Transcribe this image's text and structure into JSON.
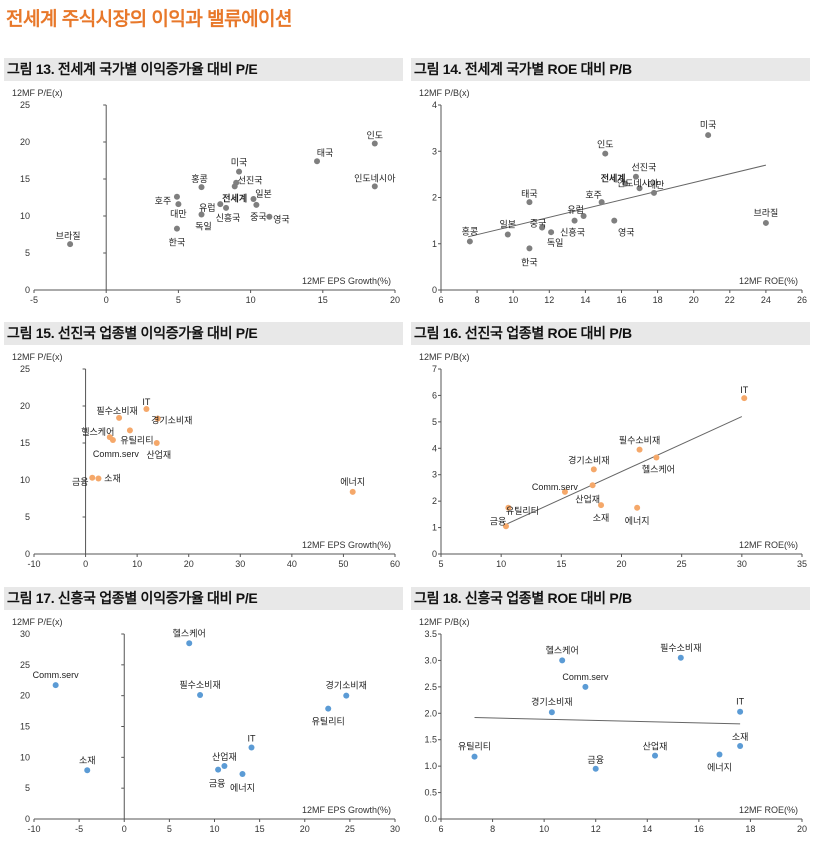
{
  "page_title": "전세계 주식시장의 이익과 밸류에이션",
  "chart_data": [
    {
      "id": "fig13",
      "type": "scatter",
      "title": "그림 13. 전세계 국가별 이익증가율 대비 P/E",
      "ylabel": "12MF P/E(x)",
      "xlabel": "12MF EPS Growth(%)",
      "xlim": [
        -5,
        20
      ],
      "ylim": [
        0,
        25
      ],
      "xticks": [
        -5,
        0,
        5,
        10,
        15,
        20
      ],
      "yticks": [
        0,
        5,
        10,
        15,
        20,
        25
      ],
      "zero_axis_x": 0,
      "color": "#7f7f7f",
      "points": [
        {
          "label": "인도",
          "x": 18.6,
          "y": 19.8
        },
        {
          "label": "태국",
          "x": 14.6,
          "y": 17.4
        },
        {
          "label": "인도네시아",
          "x": 18.6,
          "y": 14.0
        },
        {
          "label": "미국",
          "x": 9.2,
          "y": 16.0
        },
        {
          "label": "홍콩",
          "x": 6.6,
          "y": 13.9
        },
        {
          "label": "선진국",
          "x": 9.0,
          "y": 14.5
        },
        {
          "label": "전세계",
          "x": 8.9,
          "y": 14.0,
          "bold": true
        },
        {
          "label": "일본",
          "x": 10.2,
          "y": 12.3
        },
        {
          "label": "유럽",
          "x": 7.9,
          "y": 11.6
        },
        {
          "label": "중국",
          "x": 10.4,
          "y": 11.5
        },
        {
          "label": "신흥국",
          "x": 8.3,
          "y": 11.1
        },
        {
          "label": "영국",
          "x": 11.3,
          "y": 9.9
        },
        {
          "label": "호주",
          "x": 4.9,
          "y": 12.6
        },
        {
          "label": "대만",
          "x": 5.0,
          "y": 11.6
        },
        {
          "label": "독일",
          "x": 6.6,
          "y": 10.2
        },
        {
          "label": "한국",
          "x": 4.9,
          "y": 8.3
        },
        {
          "label": "브라질",
          "x": -2.5,
          "y": 6.2
        }
      ]
    },
    {
      "id": "fig14",
      "type": "scatter",
      "title": "그림 14. 전세계 국가별 ROE 대비 P/B",
      "ylabel": "12MF P/B(x)",
      "xlabel": "12MF ROE(%)",
      "xlim": [
        6,
        26
      ],
      "ylim": [
        0,
        4
      ],
      "xticks": [
        6,
        8,
        10,
        12,
        14,
        16,
        18,
        20,
        22,
        24,
        26
      ],
      "yticks": [
        0,
        1,
        2,
        3,
        4
      ],
      "color": "#7f7f7f",
      "trendline": {
        "x": [
          7.5,
          24.0
        ],
        "y": [
          1.15,
          2.7
        ]
      },
      "points": [
        {
          "label": "미국",
          "x": 20.8,
          "y": 3.35
        },
        {
          "label": "인도",
          "x": 15.1,
          "y": 2.95
        },
        {
          "label": "선진국",
          "x": 16.8,
          "y": 2.45
        },
        {
          "label": "전세계",
          "x": 16.2,
          "y": 2.3,
          "bold": true
        },
        {
          "label": "대만",
          "x": 17.8,
          "y": 2.1
        },
        {
          "label": "인도네시아",
          "x": 17.0,
          "y": 2.2
        },
        {
          "label": "태국",
          "x": 10.9,
          "y": 1.9
        },
        {
          "label": "호주",
          "x": 14.9,
          "y": 1.9
        },
        {
          "label": "유럽",
          "x": 13.9,
          "y": 1.6
        },
        {
          "label": "신흥국",
          "x": 13.4,
          "y": 1.5
        },
        {
          "label": "일본",
          "x": 9.7,
          "y": 1.2
        },
        {
          "label": "중국",
          "x": 11.6,
          "y": 1.35
        },
        {
          "label": "독일",
          "x": 12.1,
          "y": 1.25
        },
        {
          "label": "영국",
          "x": 15.6,
          "y": 1.5
        },
        {
          "label": "홍콩",
          "x": 7.6,
          "y": 1.05
        },
        {
          "label": "한국",
          "x": 10.9,
          "y": 0.9
        },
        {
          "label": "브라질",
          "x": 24.0,
          "y": 1.45
        }
      ]
    },
    {
      "id": "fig15",
      "type": "scatter",
      "title": "그림 15. 선진국 업종별 이익증가율 대비 P/E",
      "ylabel": "12MF P/E(x)",
      "xlabel": "12MF EPS Growth(%)",
      "xlim": [
        -10,
        60
      ],
      "ylim": [
        0,
        25
      ],
      "xticks": [
        -10,
        0,
        10,
        20,
        30,
        40,
        50,
        60
      ],
      "yticks": [
        0,
        5,
        10,
        15,
        20,
        25
      ],
      "zero_axis_x": 0,
      "color": "#f5a86a",
      "points": [
        {
          "label": "IT",
          "x": 11.8,
          "y": 19.6
        },
        {
          "label": "필수소비재",
          "x": 6.5,
          "y": 18.4
        },
        {
          "label": "경기소비재",
          "x": 14.0,
          "y": 18.3
        },
        {
          "label": "헬스케어",
          "x": 4.7,
          "y": 15.8
        },
        {
          "label": "유틸리티",
          "x": 8.6,
          "y": 16.7
        },
        {
          "label": "Comm.serv",
          "x": 5.3,
          "y": 15.4
        },
        {
          "label": "산업재",
          "x": 13.8,
          "y": 15.0
        },
        {
          "label": "금융",
          "x": 1.3,
          "y": 10.3
        },
        {
          "label": "소재",
          "x": 2.5,
          "y": 10.2
        },
        {
          "label": "에너지",
          "x": 51.8,
          "y": 8.4
        }
      ]
    },
    {
      "id": "fig16",
      "type": "scatter",
      "title": "그림 16. 선진국 업종별 ROE 대비 P/B",
      "ylabel": "12MF P/B(x)",
      "xlabel": "12MF ROE(%)",
      "xlim": [
        5,
        35
      ],
      "ylim": [
        0,
        7
      ],
      "xticks": [
        5,
        10,
        15,
        20,
        25,
        30,
        35
      ],
      "yticks": [
        0,
        1,
        2,
        3,
        4,
        5,
        6,
        7
      ],
      "color": "#f5a86a",
      "trendline": {
        "x": [
          10.3,
          30.0
        ],
        "y": [
          1.1,
          5.2
        ]
      },
      "points": [
        {
          "label": "IT",
          "x": 30.2,
          "y": 5.9
        },
        {
          "label": "필수소비재",
          "x": 21.5,
          "y": 3.95
        },
        {
          "label": "헬스케어",
          "x": 22.9,
          "y": 3.65
        },
        {
          "label": "경기소비재",
          "x": 17.7,
          "y": 3.2
        },
        {
          "label": "Comm.serv",
          "x": 15.3,
          "y": 2.35
        },
        {
          "label": "산업재",
          "x": 17.6,
          "y": 2.6
        },
        {
          "label": "유틸리티",
          "x": 10.6,
          "y": 1.75
        },
        {
          "label": "소재",
          "x": 18.3,
          "y": 1.85
        },
        {
          "label": "에너지",
          "x": 21.3,
          "y": 1.75
        },
        {
          "label": "금융",
          "x": 10.4,
          "y": 1.05
        }
      ]
    },
    {
      "id": "fig17",
      "type": "scatter",
      "title": "그림 17. 신흥국 업종별 이익증가율 대비 P/E",
      "ylabel": "12MF P/E(x)",
      "xlabel": "12MF EPS Growth(%)",
      "xlim": [
        -10,
        30
      ],
      "ylim": [
        0,
        30
      ],
      "xticks": [
        -10,
        -5,
        0,
        5,
        10,
        15,
        20,
        25,
        30
      ],
      "yticks": [
        0,
        5,
        10,
        15,
        20,
        25,
        30
      ],
      "zero_axis_x": 0,
      "color": "#5b9bd5",
      "points": [
        {
          "label": "헬스케어",
          "x": 7.2,
          "y": 28.5
        },
        {
          "label": "Comm.serv",
          "x": -7.6,
          "y": 21.7
        },
        {
          "label": "필수소비재",
          "x": 8.4,
          "y": 20.1
        },
        {
          "label": "경기소비재",
          "x": 24.6,
          "y": 20.0
        },
        {
          "label": "유틸리티",
          "x": 22.6,
          "y": 17.9
        },
        {
          "label": "IT",
          "x": 14.1,
          "y": 11.6
        },
        {
          "label": "소재",
          "x": -4.1,
          "y": 7.9
        },
        {
          "label": "산업재",
          "x": 11.1,
          "y": 8.6
        },
        {
          "label": "금융",
          "x": 10.4,
          "y": 8.0
        },
        {
          "label": "에너지",
          "x": 13.1,
          "y": 7.3
        }
      ]
    },
    {
      "id": "fig18",
      "type": "scatter",
      "title": "그림 18. 신흥국 업종별 ROE 대비 P/B",
      "ylabel": "12MF P/B(x)",
      "xlabel": "12MF ROE(%)",
      "xlim": [
        6,
        20
      ],
      "ylim": [
        0,
        3.5
      ],
      "xticks": [
        6,
        8,
        10,
        12,
        14,
        16,
        18,
        20
      ],
      "yticks": [
        0.0,
        0.5,
        1.0,
        1.5,
        2.0,
        2.5,
        3.0,
        3.5
      ],
      "ytick_decimals": 1,
      "color": "#5b9bd5",
      "trendline": {
        "x": [
          7.3,
          17.6
        ],
        "y": [
          1.92,
          1.8
        ]
      },
      "points": [
        {
          "label": "헬스케어",
          "x": 10.7,
          "y": 3.0
        },
        {
          "label": "필수소비재",
          "x": 15.3,
          "y": 3.05
        },
        {
          "label": "Comm.serv",
          "x": 11.6,
          "y": 2.5
        },
        {
          "label": "경기소비재",
          "x": 10.3,
          "y": 2.02
        },
        {
          "label": "IT",
          "x": 17.6,
          "y": 2.03
        },
        {
          "label": "유틸리티",
          "x": 7.3,
          "y": 1.18
        },
        {
          "label": "산업재",
          "x": 14.3,
          "y": 1.2
        },
        {
          "label": "소재",
          "x": 17.6,
          "y": 1.38
        },
        {
          "label": "에너지",
          "x": 16.8,
          "y": 1.22
        },
        {
          "label": "금융",
          "x": 12.0,
          "y": 0.95
        }
      ]
    }
  ]
}
